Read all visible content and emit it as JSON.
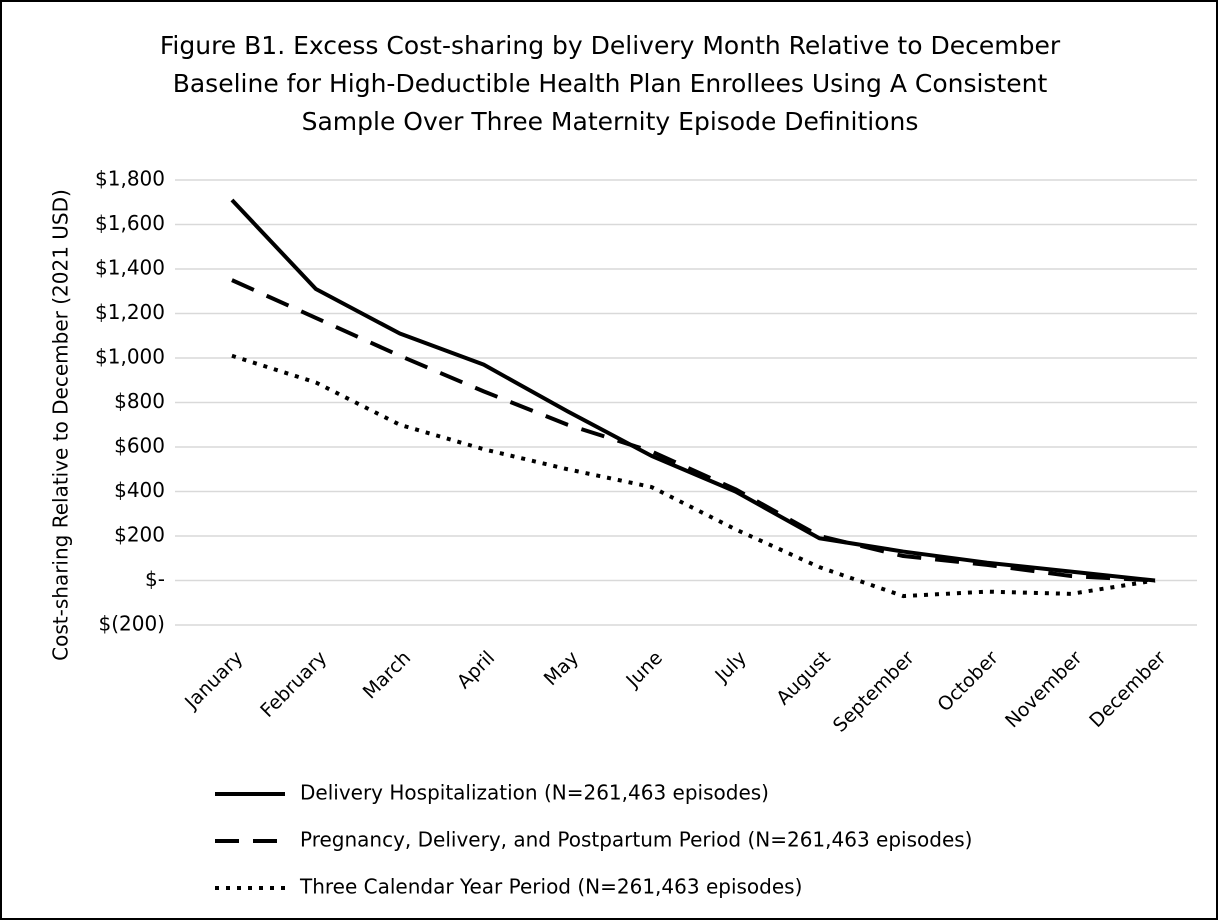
{
  "chart_data": {
    "type": "line",
    "title": [
      "Figure B1. Excess Cost-sharing by Delivery Month Relative to December",
      "Baseline for High-Deductible Health Plan Enrollees Using A Consistent",
      "Sample Over Three Maternity Episode Definitions"
    ],
    "y_label": "Cost-sharing Relative to December (2021 USD)",
    "categories": [
      "January",
      "February",
      "March",
      "April",
      "May",
      "June",
      "July",
      "August",
      "September",
      "October",
      "November",
      "December"
    ],
    "series": [
      {
        "name": "Delivery Hospitalization (N=261,463 episodes)",
        "color": "#000000",
        "style": "solid",
        "values": [
          1710,
          1310,
          1110,
          970,
          760,
          560,
          400,
          190,
          130,
          80,
          40,
          0
        ]
      },
      {
        "name": "Pregnancy, Delivery, and Postpartum Period (N=261,463 episodes)",
        "color": "#000000",
        "style": "dashed",
        "values": [
          1350,
          1180,
          1010,
          850,
          700,
          580,
          410,
          200,
          110,
          70,
          20,
          0
        ]
      },
      {
        "name": "Three Calendar Year Period (N=261,463 episodes)",
        "color": "#000000",
        "style": "dotted",
        "values": [
          1010,
          890,
          700,
          590,
          500,
          420,
          230,
          60,
          -70,
          -50,
          -60,
          0
        ]
      }
    ],
    "ylim": [
      -200,
      1800
    ],
    "yticks": [
      {
        "value": -200,
        "label": "$(200)"
      },
      {
        "value": 0,
        "label": "$-"
      },
      {
        "value": 200,
        "label": "$200"
      },
      {
        "value": 400,
        "label": "$400"
      },
      {
        "value": 600,
        "label": "$600"
      },
      {
        "value": 800,
        "label": "$800"
      },
      {
        "value": 1000,
        "label": "$1,000"
      },
      {
        "value": 1200,
        "label": "$1,200"
      },
      {
        "value": 1400,
        "label": "$1,400"
      },
      {
        "value": 1600,
        "label": "$1,600"
      },
      {
        "value": 1800,
        "label": "$1,800"
      }
    ],
    "grid": true,
    "legend": "bottom"
  }
}
